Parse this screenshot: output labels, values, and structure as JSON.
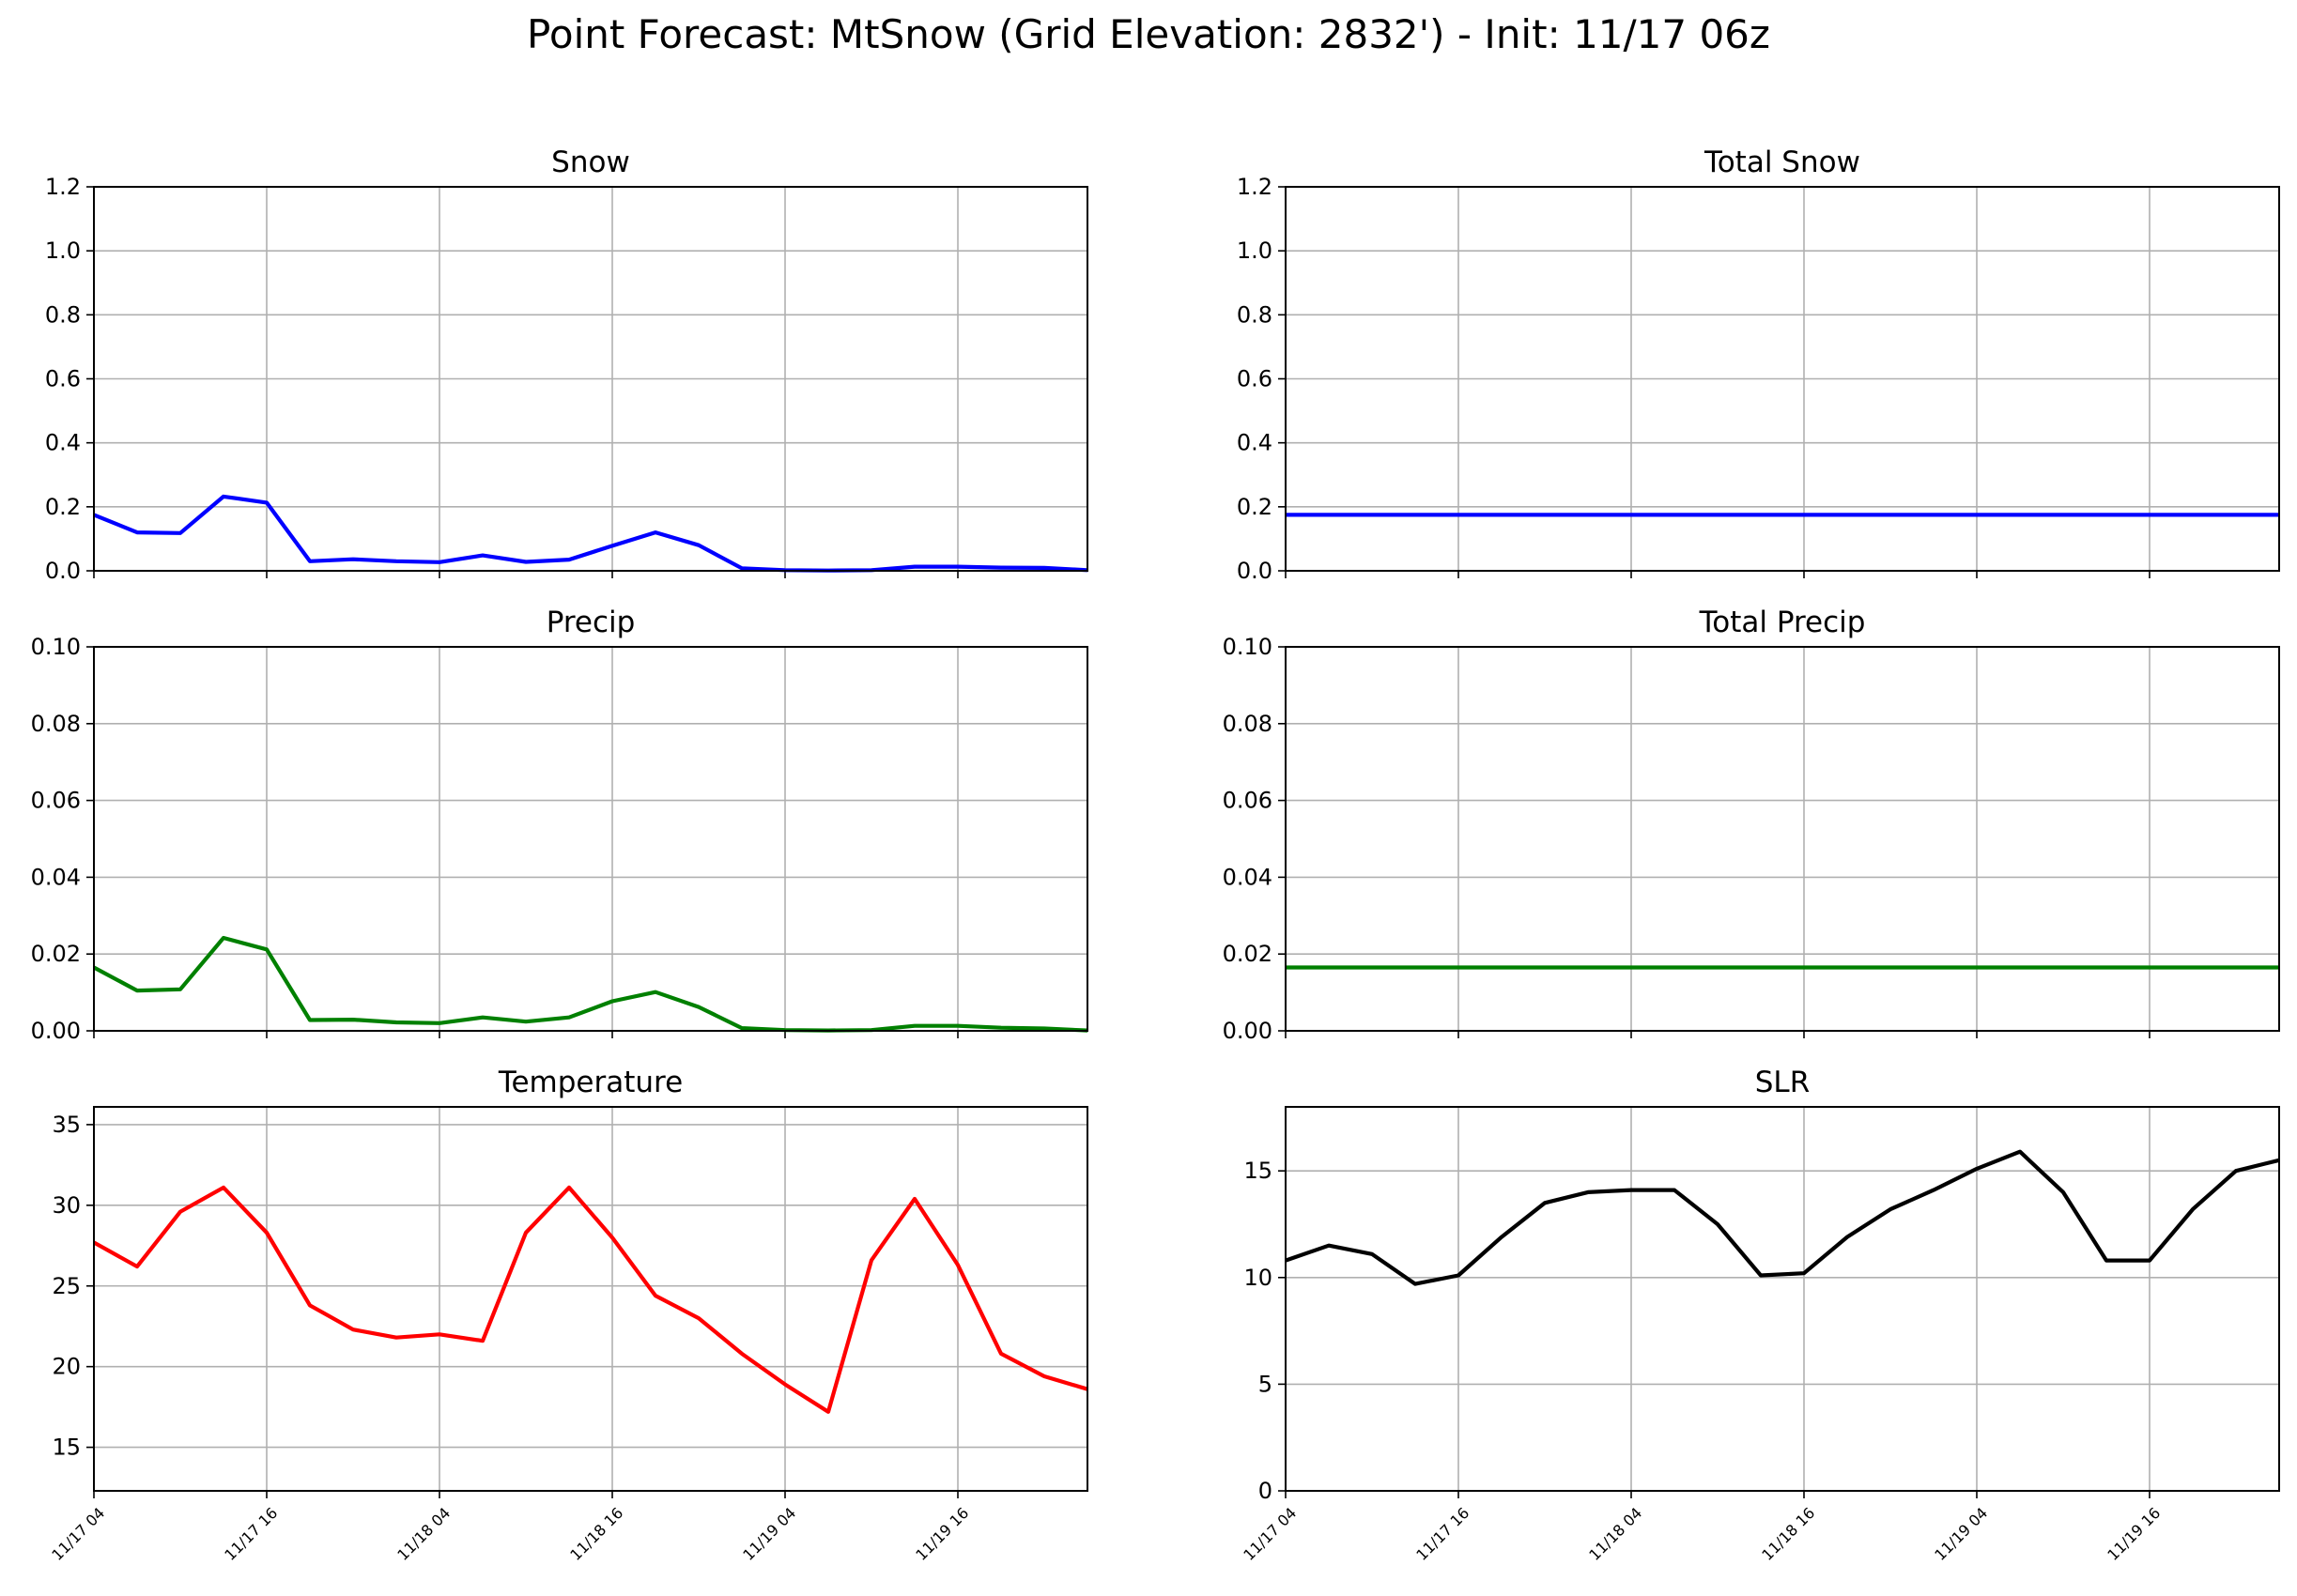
{
  "title": "Point Forecast: MtSnow (Grid Elevation: 2832') - Init: 11/17 06z",
  "chart_data": [
    {
      "id": "snow",
      "type": "line",
      "title": "Snow",
      "color": "#0000ff",
      "ylim": [
        0,
        1.2
      ],
      "yticks": [
        "0.0",
        "0.2",
        "0.4",
        "0.6",
        "0.8",
        "1.0",
        "1.2"
      ],
      "ytick_values": [
        0,
        0.2,
        0.4,
        0.6,
        0.8,
        1.0,
        1.2
      ],
      "xlim": [
        0,
        69
      ],
      "xtick_values": [
        0,
        12,
        24,
        36,
        48,
        60
      ],
      "xtick_labels": [],
      "grid": true,
      "x": [
        0,
        3,
        6,
        9,
        12,
        15,
        18,
        21,
        24,
        27,
        30,
        33,
        36,
        39,
        42,
        45,
        48,
        51,
        54,
        57,
        60,
        63,
        66,
        69
      ],
      "y": [
        0.175,
        0.12,
        0.118,
        0.232,
        0.213,
        0.03,
        0.036,
        0.03,
        0.027,
        0.048,
        0.028,
        0.035,
        0.078,
        0.12,
        0.08,
        0.008,
        0.002,
        0.001,
        0.002,
        0.013,
        0.013,
        0.01,
        0.009,
        0.002
      ]
    },
    {
      "id": "total-snow",
      "type": "line",
      "title": "Total Snow",
      "color": "#0000ff",
      "ylim": [
        0,
        1.2
      ],
      "yticks": [
        "0.0",
        "0.2",
        "0.4",
        "0.6",
        "0.8",
        "1.0",
        "1.2"
      ],
      "ytick_values": [
        0,
        0.2,
        0.4,
        0.6,
        0.8,
        1.0,
        1.2
      ],
      "xlim": [
        0,
        69
      ],
      "xtick_values": [
        0,
        12,
        24,
        36,
        48,
        60
      ],
      "xtick_labels": [],
      "grid": true,
      "x": [
        0,
        69
      ],
      "y": [
        0.175,
        0.175
      ]
    },
    {
      "id": "precip",
      "type": "line",
      "title": "Precip",
      "color": "#008000",
      "ylim": [
        0,
        0.1
      ],
      "yticks": [
        "0.00",
        "0.02",
        "0.04",
        "0.06",
        "0.08",
        "0.10"
      ],
      "ytick_values": [
        0,
        0.02,
        0.04,
        0.06,
        0.08,
        0.1
      ],
      "xlim": [
        0,
        69
      ],
      "xtick_values": [
        0,
        12,
        24,
        36,
        48,
        60
      ],
      "xtick_labels": [],
      "grid": true,
      "x": [
        0,
        3,
        6,
        9,
        12,
        15,
        18,
        21,
        24,
        27,
        30,
        33,
        36,
        39,
        42,
        45,
        48,
        51,
        54,
        57,
        60,
        63,
        66,
        69
      ],
      "y": [
        0.0165,
        0.0105,
        0.0108,
        0.0242,
        0.0212,
        0.0028,
        0.0029,
        0.0022,
        0.002,
        0.0035,
        0.0024,
        0.0035,
        0.0077,
        0.0101,
        0.0062,
        0.0007,
        0.0002,
        0.0001,
        0.0002,
        0.0013,
        0.0013,
        0.0008,
        0.0006,
        0.0001
      ]
    },
    {
      "id": "total-precip",
      "type": "line",
      "title": "Total Precip",
      "color": "#008000",
      "ylim": [
        0,
        0.1
      ],
      "yticks": [
        "0.00",
        "0.02",
        "0.04",
        "0.06",
        "0.08",
        "0.10"
      ],
      "ytick_values": [
        0,
        0.02,
        0.04,
        0.06,
        0.08,
        0.1
      ],
      "xlim": [
        0,
        69
      ],
      "xtick_values": [
        0,
        12,
        24,
        36,
        48,
        60
      ],
      "xtick_labels": [],
      "grid": true,
      "x": [
        0,
        69
      ],
      "y": [
        0.0165,
        0.0165
      ]
    },
    {
      "id": "temperature",
      "type": "line",
      "title": "Temperature",
      "color": "#ff0000",
      "ylim": [
        12.3,
        36.1
      ],
      "yticks": [
        "15",
        "20",
        "25",
        "30",
        "35"
      ],
      "ytick_values": [
        15,
        20,
        25,
        30,
        35
      ],
      "xlim": [
        0,
        69
      ],
      "xtick_values": [
        0,
        12,
        24,
        36,
        48,
        60
      ],
      "xtick_labels": [
        "11/17 04",
        "11/17 16",
        "11/18 04",
        "11/18 16",
        "11/19 04",
        "11/19 16"
      ],
      "grid": true,
      "x": [
        0,
        3,
        6,
        9,
        12,
        15,
        18,
        21,
        24,
        27,
        30,
        33,
        36,
        39,
        42,
        45,
        48,
        51,
        54,
        57,
        60,
        63,
        66,
        69
      ],
      "y": [
        27.7,
        26.2,
        29.6,
        31.1,
        28.3,
        23.8,
        22.3,
        21.8,
        22.0,
        21.6,
        28.3,
        31.1,
        28.0,
        24.4,
        23.0,
        20.8,
        18.9,
        17.2,
        26.6,
        30.4,
        26.3,
        20.8,
        19.4,
        18.6
      ]
    },
    {
      "id": "slr",
      "type": "line",
      "title": "SLR",
      "color": "#000000",
      "ylim": [
        0,
        18
      ],
      "yticks": [
        "0",
        "5",
        "10",
        "15"
      ],
      "ytick_values": [
        0,
        5,
        10,
        15
      ],
      "xlim": [
        0,
        69
      ],
      "xtick_values": [
        0,
        12,
        24,
        36,
        48,
        60
      ],
      "xtick_labels": [
        "11/17 04",
        "11/17 16",
        "11/18 04",
        "11/18 16",
        "11/19 04",
        "11/19 16"
      ],
      "grid": true,
      "x": [
        0,
        3,
        6,
        9,
        12,
        15,
        18,
        21,
        24,
        27,
        30,
        33,
        36,
        39,
        42,
        45,
        48,
        51,
        54,
        57,
        60,
        63,
        66,
        69
      ],
      "y": [
        10.8,
        11.5,
        11.1,
        9.7,
        10.1,
        11.9,
        13.5,
        14.0,
        14.1,
        14.1,
        12.5,
        10.1,
        10.2,
        11.9,
        13.2,
        14.1,
        15.1,
        15.9,
        14.0,
        10.8,
        10.8,
        13.2,
        15.0,
        15.5
      ]
    }
  ]
}
